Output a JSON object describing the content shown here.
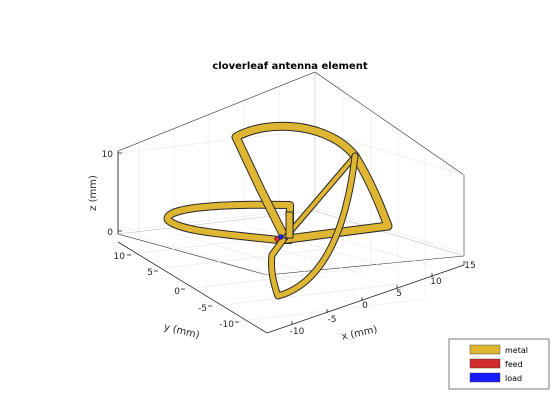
{
  "title": "cloverleaf antenna element",
  "axes": {
    "xlabel": "x (mm)",
    "ylabel": "y (mm)",
    "zlabel": "z (mm)",
    "x_ticks": [
      "-10",
      "-5",
      "0",
      "5",
      "10",
      "15"
    ],
    "y_ticks": [
      "10",
      "5",
      "0",
      "-5",
      "-10"
    ],
    "z_ticks": [
      "10",
      "0"
    ]
  },
  "legend": {
    "items": [
      {
        "label": "metal",
        "color": "#dfb632"
      },
      {
        "label": "feed",
        "color": "#d22d2d"
      },
      {
        "label": "load",
        "color": "#1a1aff"
      }
    ]
  },
  "colors": {
    "metal": "#dfb632",
    "metal_edge": "#2a2a2a",
    "grid": "#e6e6e6",
    "axis": "#262626"
  }
}
